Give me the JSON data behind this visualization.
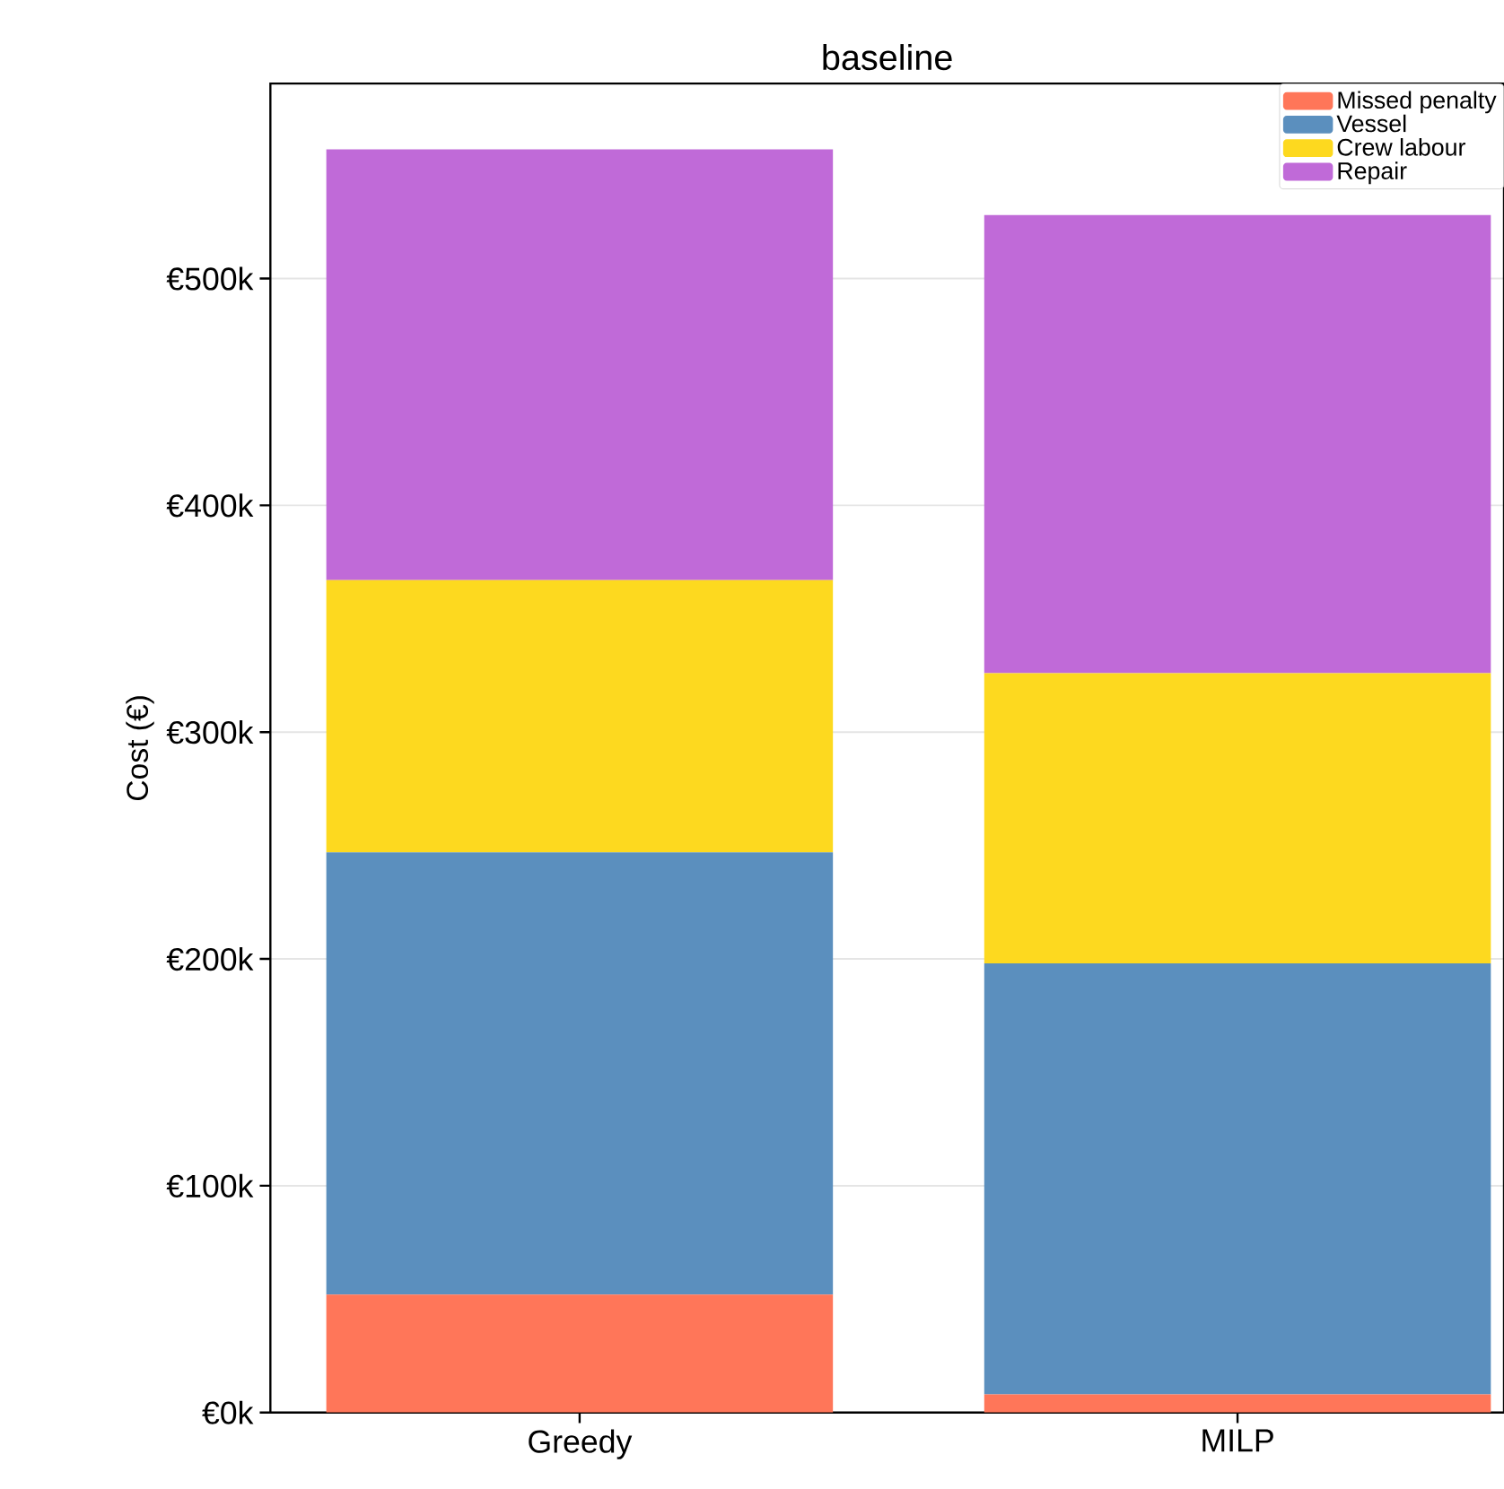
{
  "chart_data": {
    "type": "bar",
    "title": "baseline",
    "ylabel": "Cost (€)",
    "categories": [
      "Greedy",
      "MILP"
    ],
    "stacked": true,
    "series": [
      {
        "name": "Missed penalty",
        "color": "#ff7659",
        "values": [
          52000,
          8000
        ]
      },
      {
        "name": "Vessel",
        "color": "#5b8fbe",
        "values": [
          195000,
          190000
        ]
      },
      {
        "name": "Crew labour",
        "color": "#fdd91f",
        "values": [
          120000,
          128000
        ]
      },
      {
        "name": "Repair",
        "color": "#c06ad8",
        "values": [
          190000,
          202000
        ]
      }
    ],
    "ylim": [
      0,
      586000
    ],
    "yticks": [
      {
        "value": 0,
        "label": "€0k"
      },
      {
        "value": 100000,
        "label": "€100k"
      },
      {
        "value": 200000,
        "label": "€200k"
      },
      {
        "value": 300000,
        "label": "€300k"
      },
      {
        "value": 400000,
        "label": "€400k"
      },
      {
        "value": 500000,
        "label": "€500k"
      }
    ],
    "grid": "y",
    "legend": "top right"
  }
}
